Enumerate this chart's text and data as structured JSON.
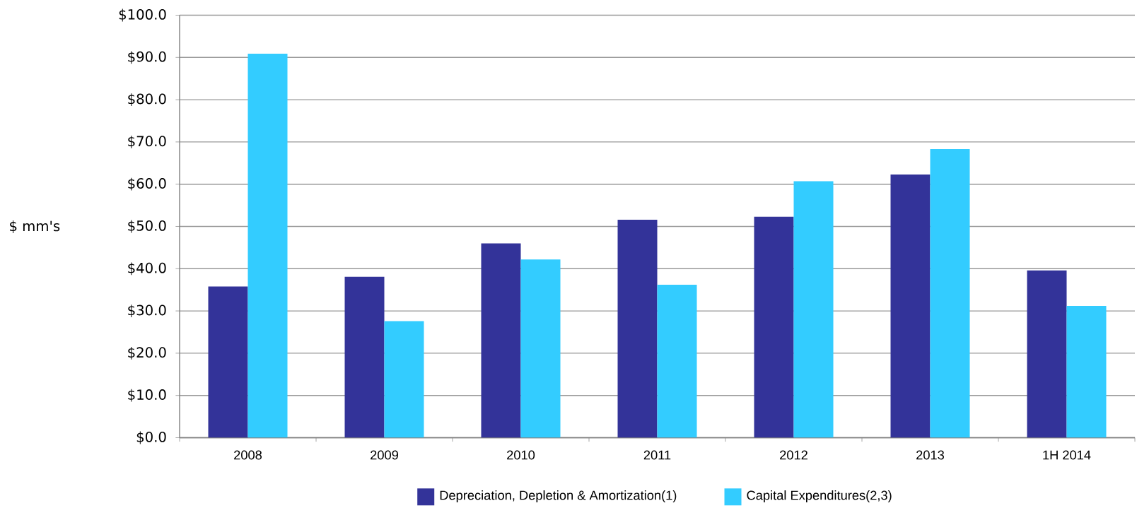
{
  "chart_data": {
    "type": "bar",
    "ylabel": "$ mm's",
    "categories": [
      "2008",
      "2009",
      "2010",
      "2011",
      "2012",
      "2013",
      "1H 2014"
    ],
    "series": [
      {
        "name": "Depreciation, Depletion & Amortization(1)",
        "color": "#333399",
        "values": [
          35.8,
          38.1,
          46.0,
          51.6,
          52.3,
          62.3,
          39.6
        ]
      },
      {
        "name": "Capital Expenditures(2,3)",
        "color": "#33ccff",
        "values": [
          90.9,
          27.6,
          42.2,
          36.2,
          60.7,
          68.3,
          31.2
        ]
      }
    ],
    "ylim": [
      0,
      100
    ],
    "yticks": [
      {
        "value": 0,
        "label": "$0.0"
      },
      {
        "value": 10,
        "label": "$10.0"
      },
      {
        "value": 20,
        "label": "$20.0"
      },
      {
        "value": 30,
        "label": "$30.0"
      },
      {
        "value": 40,
        "label": "$40.0"
      },
      {
        "value": 50,
        "label": "$50.0"
      },
      {
        "value": 60,
        "label": "$60.0"
      },
      {
        "value": 70,
        "label": "$70.0"
      },
      {
        "value": 80,
        "label": "$80.0"
      },
      {
        "value": 90,
        "label": "$90.0"
      },
      {
        "value": 100,
        "label": "$100.0"
      }
    ],
    "grid": "y",
    "legend": "bottom"
  }
}
